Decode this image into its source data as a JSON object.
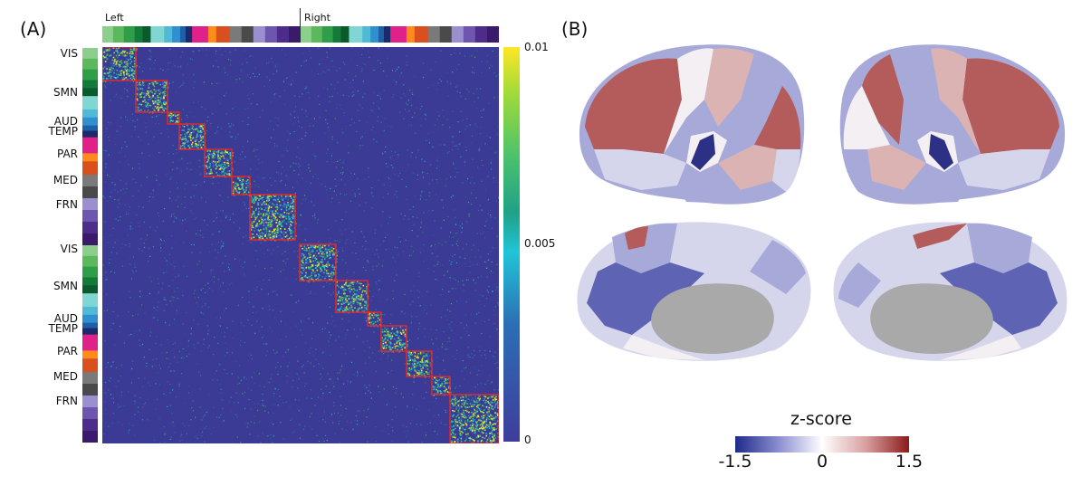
{
  "panel_a": {
    "label": "(A)",
    "hemispheres": [
      "Left",
      "Right"
    ],
    "network_labels": [
      "VIS",
      "SMN",
      "AUD",
      "TEMP",
      "PAR",
      "MED",
      "FRN",
      "VIS",
      "SMN",
      "AUD",
      "TEMP",
      "PAR",
      "MED",
      "FRN"
    ],
    "colorbar_ticks": [
      "0.01",
      "0.005",
      "0"
    ],
    "colorbar_colors": [
      "#fde725",
      "#a0da39",
      "#4ac16d",
      "#1fa187",
      "#21c4d8",
      "#2c6fb5",
      "#3f3d9a"
    ],
    "matrix_background": "#3b3b96",
    "block_outline_color": "#e02a2a",
    "parcel_colors": [
      "#8ccf8c",
      "#5cb85c",
      "#2e9e48",
      "#147a3a",
      "#0b5a2c",
      "#7fd6d2",
      "#4fb9d6",
      "#2f8fcf",
      "#1f5fa8",
      "#1b2a6b",
      "#e0218a",
      "#ff8c1a",
      "#d94f1e",
      "#7a7a7a",
      "#4a4a4a",
      "#9b8fd0",
      "#6e55b0",
      "#4e2c8c",
      "#3a1a6a"
    ]
  },
  "panel_b": {
    "label": "(B)",
    "colorbar_title": "z-score",
    "colorbar_ticks": [
      "-1.5",
      "0",
      "1.5"
    ],
    "colorbar_colors": [
      "#1f2a8a",
      "#8b8fd0",
      "#ffffff",
      "#d9a0a0",
      "#8b1a1a"
    ],
    "region_colors": {
      "strong_neg": "#2c3185",
      "neg": "#5f63b3",
      "mid_neg": "#a7aad8",
      "weak_neg": "#d5d6ec",
      "neutral": "#f3eff2",
      "weak_pos": "#dcb3b3",
      "pos": "#b45c5c",
      "medial_wall": "#a9a9a9"
    }
  }
}
